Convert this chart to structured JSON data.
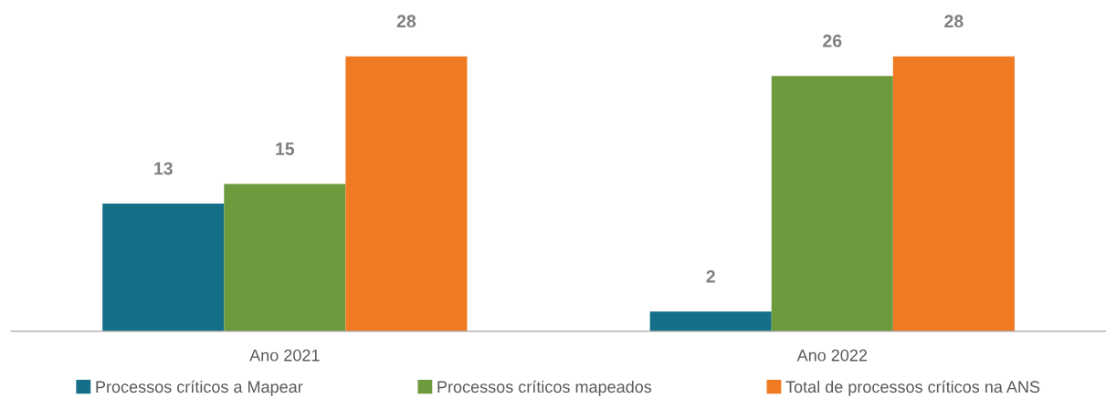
{
  "chart_data": {
    "type": "bar",
    "categories": [
      "Ano 2021",
      "Ano 2022"
    ],
    "series": [
      {
        "name": "Processos críticos a Mapear",
        "color": "#156f88",
        "values": [
          13,
          2
        ]
      },
      {
        "name": "Processos críticos mapeados",
        "color": "#6e9a3e",
        "values": [
          15,
          26
        ]
      },
      {
        "name": "Total de processos críticos na ANS",
        "color": "#f07a22",
        "values": [
          28,
          28
        ]
      }
    ],
    "data_labels": true,
    "legend": "bottom",
    "grid": false
  }
}
